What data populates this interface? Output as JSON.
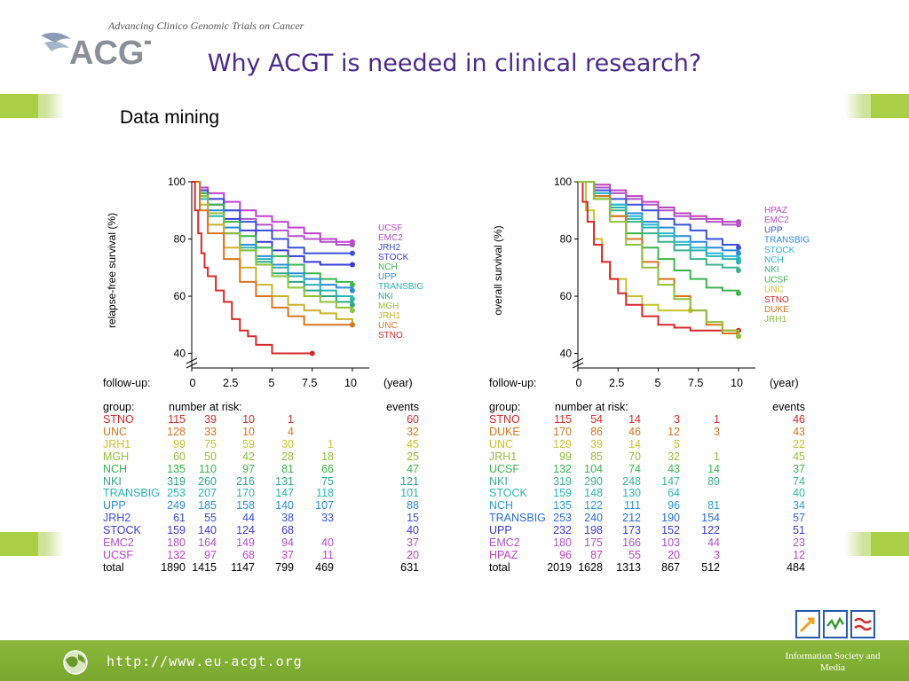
{
  "header": {
    "tagline": "Advancing Clinico Genomic Trials on Cancer",
    "logo_text": "ACGT",
    "title": "Why ACGT is needed in clinical research?",
    "subtitle": "Data mining"
  },
  "footer": {
    "url": "http://www.eu-acgt.org",
    "ism_label": "Information Society and Media"
  },
  "colors": {
    "STNO": "#d62a2a",
    "UNC": "#d9751e",
    "DUKE": "#d9751e",
    "JRH1": "#c8c22a",
    "MGH": "#8fc13a",
    "NCH": "#3ab54a",
    "UCSF_right": "#3ab54a",
    "NKI": "#2aa8a8",
    "TRANSBIG": "#2ab5b5",
    "UPP": "#2a8bd6",
    "STOCK": "#3a3ad6",
    "JRH2": "#3a6ad6",
    "EMC2": "#c040c0",
    "UCSF": "#c040d0",
    "HPAZ": "#c040c0",
    "STOCK_right": "#2ab5d6"
  },
  "chart_data": [
    {
      "type": "line",
      "ylabel": "relapse-free survival (%)",
      "xlabel": "follow-up:",
      "x_unit": "(year)",
      "x_ticks": [
        "0",
        "2.5",
        "5",
        "7.5",
        "10"
      ],
      "y_ticks": [
        "40",
        "60",
        "80",
        "100"
      ],
      "xlim": [
        0,
        10.5
      ],
      "ylim": [
        38,
        100
      ],
      "series": [
        {
          "name": "UCSF",
          "color": "#c040d0",
          "x": [
            0,
            0.5,
            1,
            2,
            3,
            4,
            5,
            6,
            7,
            8,
            9,
            10
          ],
          "y": [
            100,
            98,
            96,
            93,
            90,
            88,
            86,
            84,
            82,
            80,
            79,
            79
          ]
        },
        {
          "name": "EMC2",
          "color": "#b050c8",
          "x": [
            0,
            0.5,
            1,
            2,
            3,
            4,
            5,
            6,
            7,
            8,
            9,
            10
          ],
          "y": [
            100,
            97,
            94,
            90,
            87,
            85,
            83,
            81,
            80,
            79,
            78,
            78
          ]
        },
        {
          "name": "JRH2",
          "color": "#3a50d6",
          "x": [
            0,
            0.5,
            1,
            2,
            3,
            4,
            5,
            6,
            7,
            8,
            9,
            10
          ],
          "y": [
            100,
            97,
            94,
            90,
            86,
            83,
            80,
            77,
            75,
            75,
            75,
            75
          ]
        },
        {
          "name": "STOCK",
          "color": "#3a3ad6",
          "x": [
            0,
            0.5,
            1,
            2,
            3,
            4,
            5,
            6,
            7,
            8,
            9,
            10
          ],
          "y": [
            100,
            96,
            92,
            87,
            83,
            79,
            76,
            74,
            72,
            71,
            71,
            71
          ]
        },
        {
          "name": "NCH",
          "color": "#3ab54a",
          "x": [
            0,
            0.5,
            1,
            2,
            3,
            4,
            5,
            6,
            7,
            8,
            9,
            10
          ],
          "y": [
            100,
            96,
            92,
            86,
            81,
            77,
            74,
            71,
            68,
            66,
            65,
            64
          ]
        },
        {
          "name": "UPP",
          "color": "#2a8bd6",
          "x": [
            0,
            0.5,
            1,
            2,
            3,
            4,
            5,
            6,
            7,
            8,
            9,
            10
          ],
          "y": [
            100,
            95,
            90,
            84,
            78,
            74,
            71,
            68,
            66,
            64,
            63,
            62
          ]
        },
        {
          "name": "TRANSBIG",
          "color": "#2ab5b5",
          "x": [
            0,
            0.5,
            1,
            2,
            3,
            4,
            5,
            6,
            7,
            8,
            9,
            10
          ],
          "y": [
            100,
            94,
            88,
            82,
            77,
            73,
            70,
            67,
            64,
            62,
            60,
            59
          ]
        },
        {
          "name": "NKI",
          "color": "#2aa88a",
          "x": [
            0,
            0.5,
            1,
            2,
            3,
            4,
            5,
            6,
            7,
            8,
            9,
            10
          ],
          "y": [
            100,
            95,
            89,
            82,
            76,
            72,
            68,
            65,
            62,
            60,
            58,
            57
          ]
        },
        {
          "name": "MGH",
          "color": "#8fc13a",
          "x": [
            0,
            0.5,
            1,
            2,
            3,
            4,
            5,
            6,
            7,
            8,
            9,
            10
          ],
          "y": [
            100,
            95,
            89,
            82,
            76,
            71,
            67,
            63,
            60,
            58,
            56,
            55
          ]
        },
        {
          "name": "JRH1",
          "color": "#c8b42a",
          "x": [
            0,
            0.5,
            1,
            2,
            3,
            4,
            5,
            6,
            7,
            8,
            9,
            10
          ],
          "y": [
            100,
            92,
            85,
            77,
            70,
            64,
            60,
            57,
            55,
            54,
            52,
            50
          ]
        },
        {
          "name": "UNC",
          "color": "#d9751e",
          "x": [
            0,
            0.5,
            1,
            2,
            3,
            4,
            5,
            6,
            7,
            8,
            9,
            10
          ],
          "y": [
            100,
            90,
            82,
            73,
            65,
            60,
            56,
            53,
            50,
            50,
            50,
            50
          ]
        },
        {
          "name": "STNO",
          "color": "#d62a2a",
          "x": [
            0,
            0.2,
            0.4,
            0.6,
            0.8,
            1,
            1.5,
            2,
            2.5,
            3,
            3.5,
            4,
            5,
            6,
            7.5
          ],
          "y": [
            100,
            90,
            82,
            75,
            70,
            67,
            62,
            58,
            52,
            48,
            46,
            43,
            40,
            40,
            40
          ]
        }
      ]
    },
    {
      "type": "line",
      "ylabel": "overall survival (%)",
      "xlabel": "follow-up:",
      "x_unit": "(year)",
      "x_ticks": [
        "0",
        "2.5",
        "5",
        "7.5",
        "10"
      ],
      "y_ticks": [
        "40",
        "60",
        "80",
        "100"
      ],
      "xlim": [
        0,
        10.5
      ],
      "ylim": [
        38,
        100
      ],
      "series": [
        {
          "name": "HPAZ",
          "color": "#c040c0",
          "x": [
            0,
            1,
            2,
            3,
            4,
            5,
            6,
            7,
            8,
            9,
            10
          ],
          "y": [
            100,
            99,
            97,
            95,
            93,
            91,
            89,
            88,
            87,
            86,
            86
          ]
        },
        {
          "name": "EMC2",
          "color": "#b050c8",
          "x": [
            0,
            1,
            2,
            3,
            4,
            5,
            6,
            7,
            8,
            9,
            10
          ],
          "y": [
            100,
            98,
            96,
            94,
            92,
            90,
            88,
            87,
            86,
            85,
            85
          ]
        },
        {
          "name": "UPP",
          "color": "#3a50d6",
          "x": [
            0,
            1,
            2,
            3,
            4,
            5,
            6,
            7,
            8,
            9,
            10
          ],
          "y": [
            100,
            97,
            94,
            92,
            90,
            87,
            85,
            83,
            80,
            78,
            77
          ]
        },
        {
          "name": "TRANSBIG",
          "color": "#2a8bd6",
          "x": [
            0,
            1,
            2,
            3,
            4,
            5,
            6,
            7,
            8,
            9,
            10
          ],
          "y": [
            100,
            96,
            92,
            89,
            86,
            84,
            81,
            79,
            77,
            76,
            75
          ]
        },
        {
          "name": "STOCK",
          "color": "#2ab5d6",
          "x": [
            0,
            1,
            2,
            3,
            4,
            5,
            6,
            7,
            8,
            9,
            10
          ],
          "y": [
            100,
            96,
            92,
            88,
            85,
            82,
            79,
            77,
            75,
            74,
            73
          ]
        },
        {
          "name": "NCH",
          "color": "#2ab5b5",
          "x": [
            0,
            1,
            2,
            3,
            4,
            5,
            6,
            7,
            8,
            9,
            10
          ],
          "y": [
            100,
            95,
            91,
            87,
            84,
            81,
            78,
            76,
            74,
            73,
            72
          ]
        },
        {
          "name": "NKI",
          "color": "#3ab58a",
          "x": [
            0,
            1,
            2,
            3,
            4,
            5,
            6,
            7,
            8,
            9,
            10
          ],
          "y": [
            100,
            95,
            90,
            86,
            82,
            79,
            76,
            73,
            71,
            70,
            69
          ]
        },
        {
          "name": "UCSF",
          "color": "#3ab54a",
          "x": [
            0,
            1,
            2,
            3,
            4,
            5,
            6,
            7,
            8,
            9,
            10
          ],
          "y": [
            100,
            94,
            88,
            82,
            77,
            73,
            69,
            66,
            63,
            62,
            61
          ]
        },
        {
          "name": "UNC",
          "color": "#c8c22a",
          "x": [
            0,
            0.5,
            1,
            1.5,
            2,
            3,
            4,
            5,
            6,
            7
          ],
          "y": [
            100,
            90,
            80,
            72,
            66,
            60,
            57,
            55,
            55,
            55
          ]
        },
        {
          "name": "STNO",
          "color": "#d62a2a",
          "x": [
            0,
            0.3,
            0.6,
            1,
            1.5,
            2,
            2.5,
            3,
            4,
            5,
            6,
            7,
            8,
            9,
            10
          ],
          "y": [
            100,
            93,
            86,
            78,
            72,
            66,
            61,
            57,
            53,
            50,
            49,
            48,
            48,
            48,
            48
          ]
        },
        {
          "name": "DUKE",
          "color": "#d9751e",
          "x": [
            0,
            1,
            2,
            3,
            4,
            5,
            6,
            7,
            8,
            9,
            10
          ],
          "y": [
            100,
            95,
            88,
            80,
            72,
            66,
            60,
            55,
            50,
            47,
            46
          ]
        },
        {
          "name": "JRH1",
          "color": "#8fc13a",
          "x": [
            0,
            1,
            2,
            3,
            4,
            5,
            6,
            7,
            8,
            9,
            10
          ],
          "y": [
            100,
            94,
            86,
            78,
            70,
            64,
            59,
            55,
            51,
            48,
            46
          ]
        }
      ]
    }
  ],
  "tables": [
    {
      "head": {
        "group": "group:",
        "risk": "number at risk:",
        "events": "events"
      },
      "rows": [
        {
          "g": "STNO",
          "c": "#d62a2a",
          "v": [
            "115",
            "39",
            "10",
            "1",
            ""
          ],
          "e": "60"
        },
        {
          "g": "UNC",
          "c": "#d9751e",
          "v": [
            "128",
            "33",
            "10",
            "4",
            ""
          ],
          "e": "32"
        },
        {
          "g": "JRH1",
          "c": "#c8c22a",
          "v": [
            "99",
            "75",
            "59",
            "30",
            "1"
          ],
          "e": "45"
        },
        {
          "g": "MGH",
          "c": "#8fc13a",
          "v": [
            "60",
            "50",
            "42",
            "28",
            "18"
          ],
          "e": "25"
        },
        {
          "g": "NCH",
          "c": "#3ab54a",
          "v": [
            "135",
            "110",
            "97",
            "81",
            "66"
          ],
          "e": "47"
        },
        {
          "g": "NKI",
          "c": "#2aa88a",
          "v": [
            "319",
            "260",
            "216",
            "131",
            "75"
          ],
          "e": "121"
        },
        {
          "g": "TRANSBIG",
          "c": "#2ab5b5",
          "v": [
            "253",
            "207",
            "170",
            "147",
            "118"
          ],
          "e": "101"
        },
        {
          "g": "UPP",
          "c": "#2a8bd6",
          "v": [
            "249",
            "185",
            "158",
            "140",
            "107"
          ],
          "e": "88"
        },
        {
          "g": "JRH2",
          "c": "#3a50d6",
          "v": [
            "61",
            "55",
            "44",
            "38",
            "33"
          ],
          "e": "15"
        },
        {
          "g": "STOCK",
          "c": "#3a3ad6",
          "v": [
            "159",
            "140",
            "124",
            "68",
            ""
          ],
          "e": "40"
        },
        {
          "g": "EMC2",
          "c": "#b050c8",
          "v": [
            "180",
            "164",
            "149",
            "94",
            "40"
          ],
          "e": "37"
        },
        {
          "g": "UCSF",
          "c": "#c040d0",
          "v": [
            "132",
            "97",
            "68",
            "37",
            "11"
          ],
          "e": "20"
        },
        {
          "g": "total",
          "c": "#000000",
          "v": [
            "1890",
            "1415",
            "1147",
            "799",
            "469"
          ],
          "e": "631"
        }
      ]
    },
    {
      "head": {
        "group": "group:",
        "risk": "number at risk:",
        "events": "events"
      },
      "rows": [
        {
          "g": "STNO",
          "c": "#d62a2a",
          "v": [
            "115",
            "54",
            "14",
            "3",
            "1"
          ],
          "e": "46"
        },
        {
          "g": "DUKE",
          "c": "#d9751e",
          "v": [
            "170",
            "86",
            "46",
            "12",
            "3"
          ],
          "e": "43"
        },
        {
          "g": "UNC",
          "c": "#c8c22a",
          "v": [
            "129",
            "39",
            "14",
            "5",
            ""
          ],
          "e": "22"
        },
        {
          "g": "JRH1",
          "c": "#8fc13a",
          "v": [
            "99",
            "85",
            "70",
            "32",
            "1"
          ],
          "e": "45"
        },
        {
          "g": "UCSF",
          "c": "#3ab54a",
          "v": [
            "132",
            "104",
            "74",
            "43",
            "14"
          ],
          "e": "37"
        },
        {
          "g": "NKI",
          "c": "#3ab58a",
          "v": [
            "319",
            "290",
            "248",
            "147",
            "89"
          ],
          "e": "74"
        },
        {
          "g": "STOCK",
          "c": "#2ab5b5",
          "v": [
            "159",
            "148",
            "130",
            "64",
            ""
          ],
          "e": "40"
        },
        {
          "g": "NCH",
          "c": "#2a9bd6",
          "v": [
            "135",
            "122",
            "111",
            "96",
            "81"
          ],
          "e": "34"
        },
        {
          "g": "TRANSBIG",
          "c": "#2a6bd6",
          "v": [
            "253",
            "240",
            "212",
            "190",
            "154"
          ],
          "e": "57"
        },
        {
          "g": "UPP",
          "c": "#3a3ad6",
          "v": [
            "232",
            "198",
            "173",
            "152",
            "122"
          ],
          "e": "51"
        },
        {
          "g": "EMC2",
          "c": "#b050c8",
          "v": [
            "180",
            "175",
            "166",
            "103",
            "44"
          ],
          "e": "23"
        },
        {
          "g": "HPAZ",
          "c": "#c040c0",
          "v": [
            "96",
            "87",
            "55",
            "20",
            "3"
          ],
          "e": "12"
        },
        {
          "g": "total",
          "c": "#000000",
          "v": [
            "2019",
            "1628",
            "1313",
            "867",
            "512"
          ],
          "e": "484"
        }
      ]
    }
  ]
}
